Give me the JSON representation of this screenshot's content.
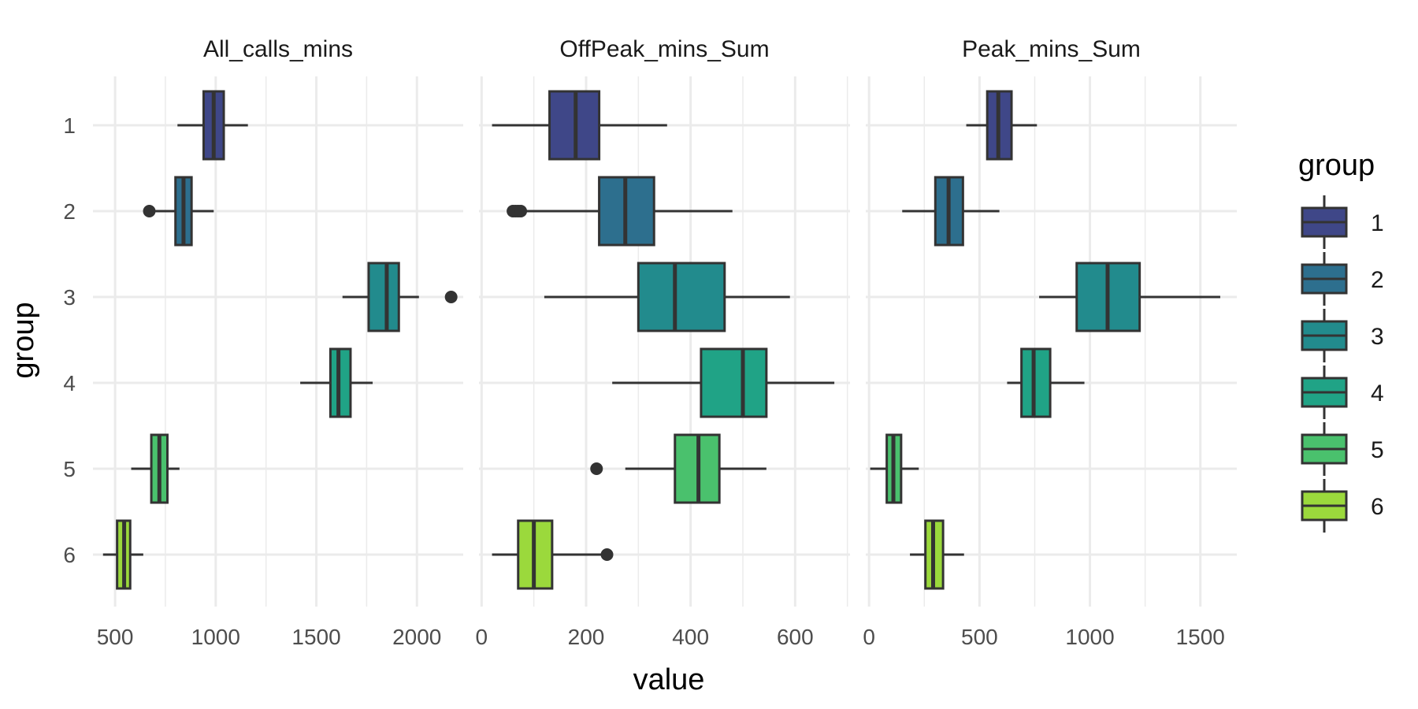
{
  "chart_data": {
    "type": "boxplot",
    "orientation": "horizontal",
    "xlabel": "value",
    "ylabel": "group",
    "categories": [
      "1",
      "2",
      "3",
      "4",
      "5",
      "6"
    ],
    "colors": [
      "#3f4788",
      "#2d6f8e",
      "#228b8d",
      "#20a386",
      "#4ac16d",
      "#9bd93c"
    ],
    "legend": {
      "title": "group",
      "position": "right",
      "labels": [
        "1",
        "2",
        "3",
        "4",
        "5",
        "6"
      ]
    },
    "grid": true,
    "panels": [
      {
        "title": "All_calls_mins",
        "xlim": [
          390,
          2230
        ],
        "ticks": [
          500,
          1000,
          1500,
          2000
        ],
        "tick_labels": [
          "500",
          "1000",
          "1500",
          "2000"
        ],
        "boxes": [
          {
            "group": "1",
            "whisker_low": 810,
            "q1": 940,
            "median": 990,
            "q3": 1040,
            "whisker_high": 1160,
            "outliers": []
          },
          {
            "group": "2",
            "whisker_low": 700,
            "q1": 800,
            "median": 840,
            "q3": 880,
            "whisker_high": 990,
            "outliers": [
              670
            ]
          },
          {
            "group": "3",
            "whisker_low": 1630,
            "q1": 1760,
            "median": 1850,
            "q3": 1910,
            "whisker_high": 2010,
            "outliers": [
              2170
            ]
          },
          {
            "group": "4",
            "whisker_low": 1420,
            "q1": 1570,
            "median": 1610,
            "q3": 1670,
            "whisker_high": 1780,
            "outliers": []
          },
          {
            "group": "5",
            "whisker_low": 580,
            "q1": 680,
            "median": 720,
            "q3": 760,
            "whisker_high": 820,
            "outliers": []
          },
          {
            "group": "6",
            "whisker_low": 440,
            "q1": 510,
            "median": 545,
            "q3": 575,
            "whisker_high": 640,
            "outliers": []
          }
        ]
      },
      {
        "title": "OffPeak_mins_Sum",
        "xlim": [
          -5,
          705
        ],
        "ticks": [
          0,
          200,
          400,
          600
        ],
        "tick_labels": [
          "0",
          "200",
          "400",
          "600"
        ],
        "boxes": [
          {
            "group": "1",
            "whisker_low": 20,
            "q1": 130,
            "median": 180,
            "q3": 225,
            "whisker_high": 355,
            "outliers": []
          },
          {
            "group": "2",
            "whisker_low": 85,
            "q1": 225,
            "median": 275,
            "q3": 330,
            "whisker_high": 480,
            "outliers": [
              60,
              65,
              70,
              75
            ]
          },
          {
            "group": "3",
            "whisker_low": 120,
            "q1": 300,
            "median": 370,
            "q3": 465,
            "whisker_high": 590,
            "outliers": []
          },
          {
            "group": "4",
            "whisker_low": 250,
            "q1": 420,
            "median": 500,
            "q3": 545,
            "whisker_high": 675,
            "outliers": []
          },
          {
            "group": "5",
            "whisker_low": 275,
            "q1": 370,
            "median": 415,
            "q3": 455,
            "whisker_high": 545,
            "outliers": [
              220
            ]
          },
          {
            "group": "6",
            "whisker_low": 20,
            "q1": 70,
            "median": 100,
            "q3": 135,
            "whisker_high": 235,
            "outliers": [
              240
            ]
          }
        ]
      },
      {
        "title": "Peak_mins_Sum",
        "xlim": [
          -15,
          1665
        ],
        "ticks": [
          0,
          500,
          1000,
          1500
        ],
        "tick_labels": [
          "0",
          "500",
          "1000",
          "1500"
        ],
        "boxes": [
          {
            "group": "1",
            "whisker_low": 440,
            "q1": 535,
            "median": 585,
            "q3": 645,
            "whisker_high": 760,
            "outliers": []
          },
          {
            "group": "2",
            "whisker_low": 150,
            "q1": 300,
            "median": 360,
            "q3": 425,
            "whisker_high": 590,
            "outliers": []
          },
          {
            "group": "3",
            "whisker_low": 770,
            "q1": 940,
            "median": 1080,
            "q3": 1225,
            "whisker_high": 1590,
            "outliers": []
          },
          {
            "group": "4",
            "whisker_low": 625,
            "q1": 690,
            "median": 745,
            "q3": 820,
            "whisker_high": 975,
            "outliers": []
          },
          {
            "group": "5",
            "whisker_low": 5,
            "q1": 80,
            "median": 110,
            "q3": 145,
            "whisker_high": 225,
            "outliers": []
          },
          {
            "group": "6",
            "whisker_low": 185,
            "q1": 255,
            "median": 290,
            "q3": 335,
            "whisker_high": 430,
            "outliers": []
          }
        ]
      }
    ]
  }
}
